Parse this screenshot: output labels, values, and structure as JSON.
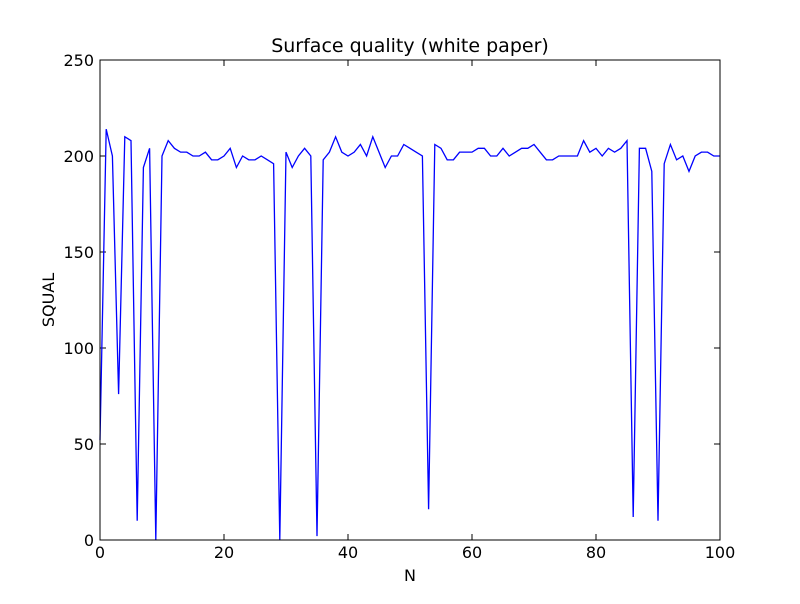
{
  "chart_data": {
    "type": "line",
    "title": "Surface quality (white paper)",
    "xlabel": "N",
    "ylabel": "SQUAL",
    "xlim": [
      0,
      100
    ],
    "ylim": [
      0,
      250
    ],
    "xticks": [
      0,
      20,
      40,
      60,
      80,
      100
    ],
    "yticks": [
      0,
      50,
      100,
      150,
      200,
      250
    ],
    "grid": false,
    "legend": "none",
    "line_color": "#0000ff",
    "series": [
      {
        "x": [
          0,
          1,
          2,
          3,
          4,
          5,
          6,
          7,
          8,
          9,
          10,
          11,
          12,
          13,
          14,
          15,
          16,
          17,
          18,
          19,
          20,
          21,
          22,
          23,
          24,
          25,
          26,
          27,
          28,
          29,
          30,
          31,
          32,
          33,
          34,
          35,
          36,
          37,
          38,
          39,
          40,
          41,
          42,
          43,
          44,
          45,
          46,
          47,
          48,
          49,
          50,
          51,
          52,
          53,
          54,
          55,
          56,
          57,
          58,
          59,
          60,
          61,
          62,
          63,
          64,
          65,
          66,
          67,
          68,
          69,
          70,
          71,
          72,
          73,
          74,
          75,
          76,
          77,
          78,
          79,
          80,
          81,
          82,
          83,
          84,
          85,
          86,
          87,
          88,
          89,
          90,
          91,
          92,
          93,
          94,
          95,
          96,
          97,
          98,
          99,
          100
        ],
        "values": [
          52,
          214,
          200,
          76,
          210,
          208,
          10,
          194,
          204,
          0,
          200,
          208,
          204,
          202,
          202,
          200,
          200,
          202,
          198,
          198,
          200,
          204,
          194,
          200,
          198,
          198,
          200,
          198,
          196,
          0,
          202,
          194,
          200,
          204,
          200,
          2,
          198,
          202,
          210,
          202,
          200,
          202,
          206,
          200,
          210,
          202,
          194,
          200,
          200,
          206,
          204,
          202,
          200,
          16,
          206,
          204,
          198,
          198,
          202,
          202,
          202,
          204,
          204,
          200,
          200,
          204,
          200,
          202,
          204,
          204,
          206,
          202,
          198,
          198,
          200,
          200,
          200,
          200,
          208,
          202,
          204,
          200,
          204,
          202,
          204,
          208,
          12,
          204,
          204,
          192,
          10,
          196,
          206,
          198,
          200,
          192,
          200,
          202,
          202,
          200,
          200
        ]
      }
    ]
  }
}
